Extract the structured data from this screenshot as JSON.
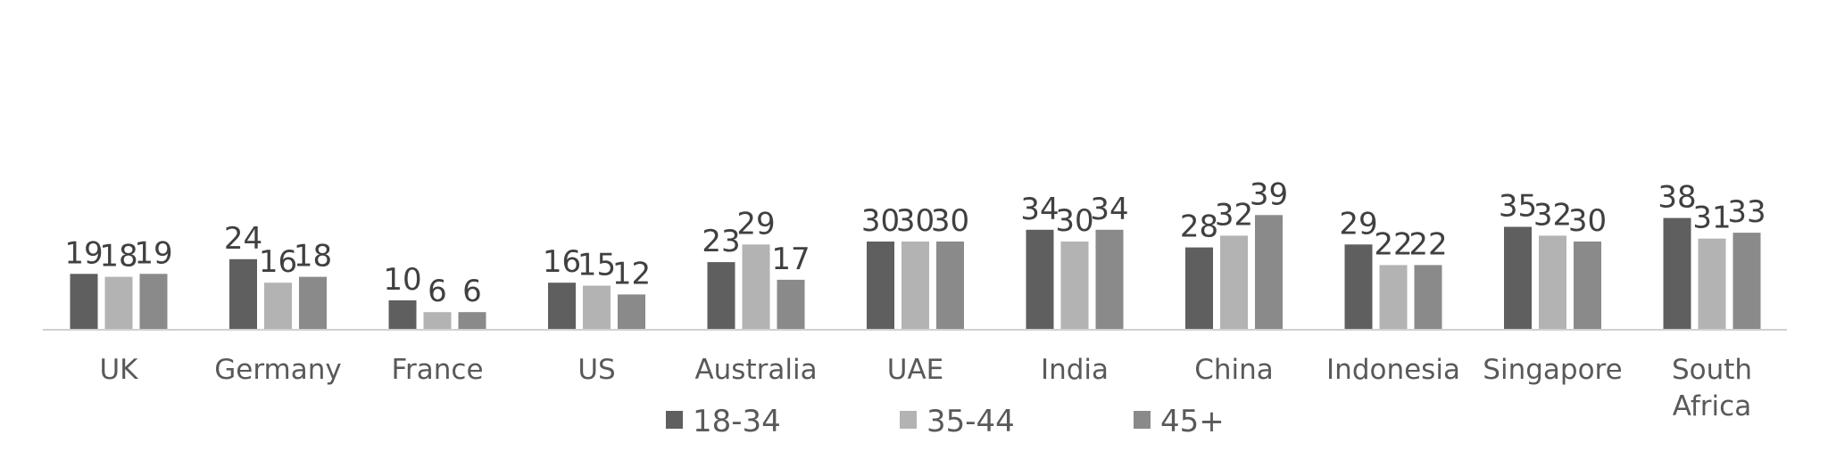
{
  "chart_data": {
    "type": "bar",
    "title": "",
    "xlabel": "",
    "ylabel": "",
    "categories": [
      "UK",
      "Germany",
      "France",
      "US",
      "Australia",
      "UAE",
      "India",
      "China",
      "Indonesia",
      "Singapore",
      "South Africa"
    ],
    "series": [
      {
        "name": "18-34",
        "color": "#5f5f5f",
        "values": [
          19,
          24,
          10,
          16,
          23,
          30,
          34,
          28,
          29,
          35,
          38
        ]
      },
      {
        "name": "35-44",
        "color": "#b3b3b3",
        "values": [
          18,
          16,
          6,
          15,
          29,
          30,
          30,
          32,
          22,
          32,
          31
        ]
      },
      {
        "name": "45+",
        "color": "#8a8a8a",
        "values": [
          19,
          18,
          6,
          12,
          17,
          30,
          34,
          39,
          22,
          30,
          33
        ]
      }
    ],
    "ylim": [
      0,
      60
    ],
    "grid": false,
    "data_labels": true,
    "legend_position": "bottom"
  }
}
